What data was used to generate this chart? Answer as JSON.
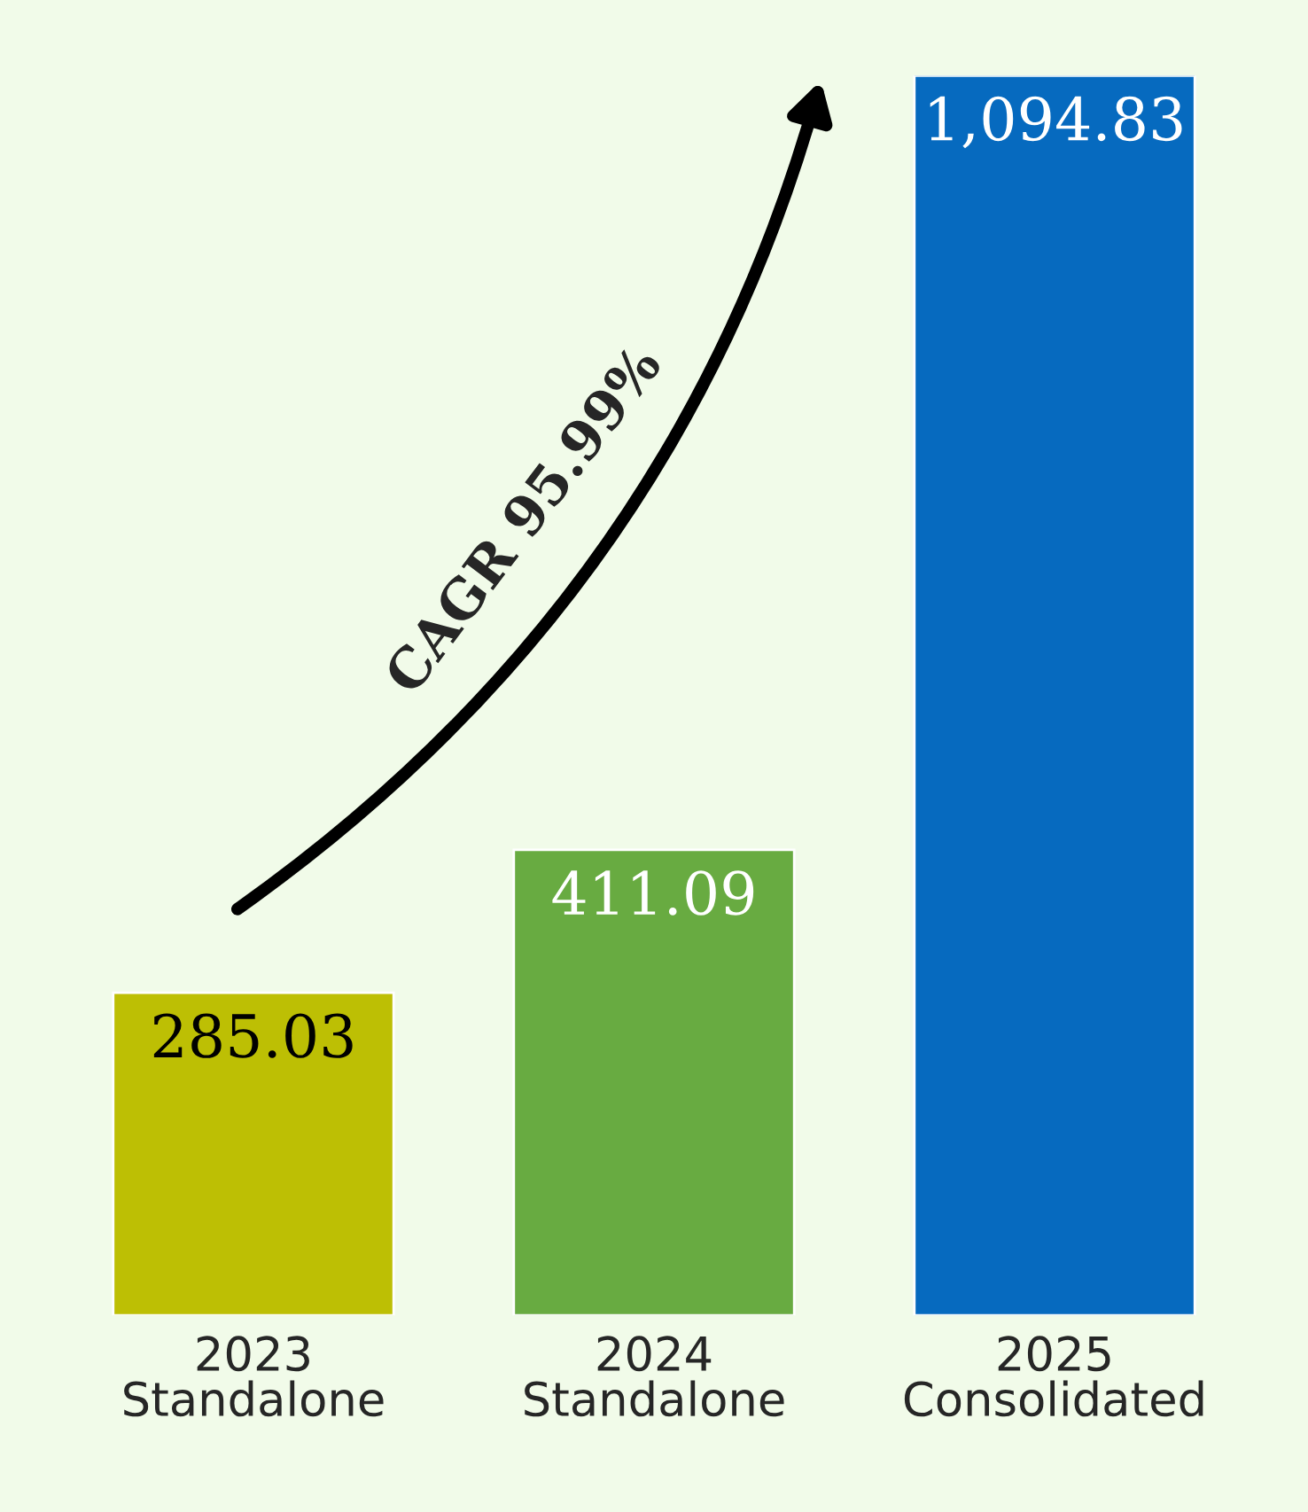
{
  "chart_data": {
    "type": "bar",
    "categories": [
      "2023\nStandalone",
      "2024\nStandalone",
      "2025\nConsolidated"
    ],
    "values": [
      285.03,
      411.09,
      1094.83
    ],
    "colors": [
      "#bdbf04",
      "#68ab41",
      "#066abf"
    ],
    "value_labels": [
      "285.03",
      "411.09",
      "1,094.83"
    ],
    "annotations": [
      "CAGR 95.99%"
    ]
  }
}
